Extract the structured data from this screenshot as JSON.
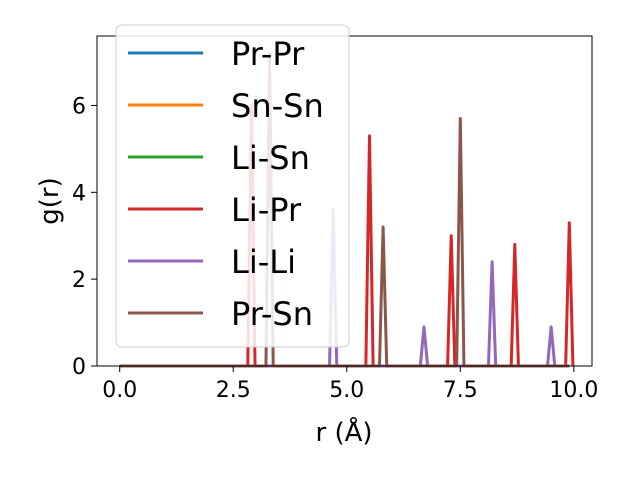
{
  "chart_data": {
    "type": "line",
    "title": "",
    "xlabel": "r (Å)",
    "ylabel": "g(r)",
    "xlim": [
      -0.5,
      10.4
    ],
    "ylim": [
      0,
      7.6
    ],
    "xticks": [
      0.0,
      2.5,
      5.0,
      7.5,
      10.0
    ],
    "xtick_labels": [
      "0.0",
      "2.5",
      "5.0",
      "7.5",
      "10.0"
    ],
    "yticks": [
      0,
      2,
      4,
      6
    ],
    "ytick_labels": [
      "0",
      "2",
      "4",
      "6"
    ],
    "grid": false,
    "legend_position": "upper-left",
    "series": [
      {
        "name": "Pr-Pr",
        "color": "#1f77b4",
        "peaks": []
      },
      {
        "name": "Sn-Sn",
        "color": "#ff7f0e",
        "peaks": []
      },
      {
        "name": "Li-Sn",
        "color": "#2ca02c",
        "peaks": []
      },
      {
        "name": "Li-Pr",
        "color": "#d62728",
        "peaks": [
          [
            2.9,
            6.0
          ],
          [
            5.5,
            5.3
          ],
          [
            7.3,
            3.0
          ],
          [
            8.7,
            2.8
          ],
          [
            9.9,
            3.3
          ]
        ]
      },
      {
        "name": "Li-Li",
        "color": "#9467bd",
        "peaks": [
          [
            4.7,
            3.6
          ],
          [
            6.7,
            0.9
          ],
          [
            8.2,
            2.4
          ],
          [
            9.5,
            0.9
          ]
        ]
      },
      {
        "name": "Pr-Sn",
        "color": "#8c564b",
        "peaks": [
          [
            3.3,
            7.2
          ],
          [
            5.8,
            3.2
          ],
          [
            7.5,
            5.7
          ]
        ]
      }
    ]
  }
}
